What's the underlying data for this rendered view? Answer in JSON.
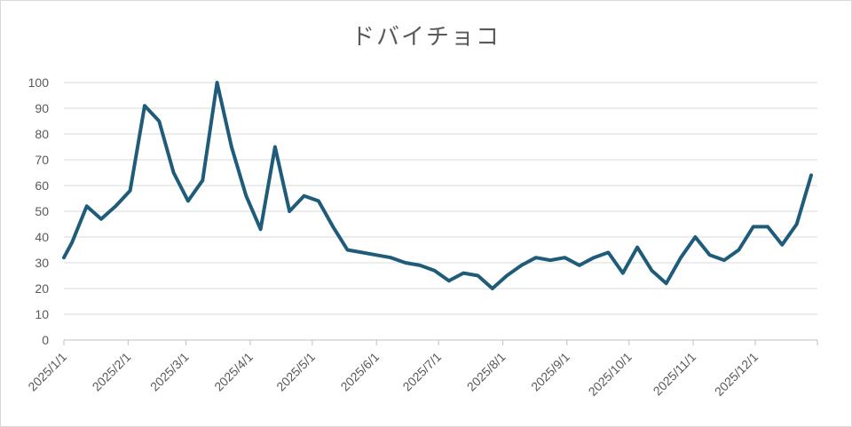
{
  "chart_data": {
    "type": "line",
    "title": "ドバイチョコ",
    "xlabel": "",
    "ylabel": "",
    "ylim": [
      0,
      100
    ],
    "yticks": [
      0,
      10,
      20,
      30,
      40,
      50,
      60,
      70,
      80,
      90,
      100
    ],
    "xlim": [
      "2025-01-01",
      "2025-12-31"
    ],
    "xticks": [
      "2025/1/1",
      "2025/2/1",
      "2025/3/1",
      "2025/4/1",
      "2025/5/1",
      "2025/6/1",
      "2025/7/1",
      "2025/8/1",
      "2025/9/1",
      "2025/10/1",
      "2025/11/1",
      "2025/12/1"
    ],
    "x_tick_dates": [
      "2025-01-01",
      "2025-02-01",
      "2025-03-01",
      "2025-04-01",
      "2025-05-01",
      "2025-06-01",
      "2025-07-01",
      "2025-08-01",
      "2025-09-01",
      "2025-10-01",
      "2025-11-01",
      "2025-12-01"
    ],
    "grid": true,
    "legend": "none",
    "series": [
      {
        "color": "#1f5c7a",
        "x": [
          "2025-01-01",
          "2025-01-05",
          "2025-01-12",
          "2025-01-19",
          "2025-01-26",
          "2025-02-02",
          "2025-02-09",
          "2025-02-16",
          "2025-02-23",
          "2025-03-02",
          "2025-03-09",
          "2025-03-16",
          "2025-03-23",
          "2025-03-30",
          "2025-04-06",
          "2025-04-13",
          "2025-04-20",
          "2025-04-27",
          "2025-05-04",
          "2025-05-11",
          "2025-05-18",
          "2025-05-25",
          "2025-06-01",
          "2025-06-08",
          "2025-06-15",
          "2025-06-22",
          "2025-06-29",
          "2025-07-06",
          "2025-07-13",
          "2025-07-20",
          "2025-07-27",
          "2025-08-03",
          "2025-08-10",
          "2025-08-17",
          "2025-08-24",
          "2025-08-31",
          "2025-09-07",
          "2025-09-14",
          "2025-09-21",
          "2025-09-28",
          "2025-10-05",
          "2025-10-12",
          "2025-10-19",
          "2025-10-26",
          "2025-11-02",
          "2025-11-09",
          "2025-11-16",
          "2025-11-23",
          "2025-11-30",
          "2025-12-07",
          "2025-12-14",
          "2025-12-21",
          "2025-12-28"
        ],
        "values": [
          32,
          38,
          52,
          47,
          52,
          58,
          91,
          85,
          65,
          54,
          62,
          100,
          75,
          56,
          43,
          75,
          50,
          56,
          54,
          44,
          35,
          34,
          33,
          32,
          30,
          29,
          27,
          23,
          26,
          25,
          20,
          25,
          29,
          32,
          31,
          32,
          29,
          32,
          34,
          26,
          36,
          27,
          22,
          32,
          40,
          33,
          31,
          35,
          44,
          44,
          37,
          45,
          64
        ]
      }
    ]
  }
}
